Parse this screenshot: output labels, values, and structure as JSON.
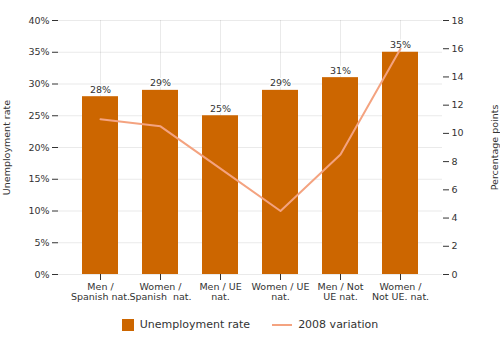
{
  "chart_data": {
    "type": "bar",
    "categories": [
      "Men /\nSpanish nat.",
      "Women /\nSpanish  nat.",
      "Men / UE\nnat.",
      "Women / UE\nnat.",
      "Men / Not\nUE nat.",
      "Women /\nNot UE. nat."
    ],
    "series": [
      {
        "name": "Unemployment rate",
        "type": "bar",
        "color": "#CC6600",
        "values": [
          28,
          29,
          25,
          29,
          31,
          35
        ],
        "value_labels": [
          "28%",
          "29%",
          "25%",
          "29%",
          "31%",
          "35%"
        ]
      },
      {
        "name": "2008 variation",
        "type": "line",
        "color": "#F4A380",
        "axis": "y2",
        "values": [
          11.0,
          10.5,
          7.5,
          4.5,
          8.5,
          16.0
        ]
      }
    ],
    "ylabel": "Unemployment rate",
    "y2label": "Percentage points",
    "ylim": [
      0,
      40
    ],
    "yticks": [
      {
        "value": 0,
        "label": "0%"
      },
      {
        "value": 5,
        "label": "5%"
      },
      {
        "value": 10,
        "label": "10%"
      },
      {
        "value": 15,
        "label": "15%"
      },
      {
        "value": 20,
        "label": "20%"
      },
      {
        "value": 25,
        "label": "25%"
      },
      {
        "value": 30,
        "label": "30%"
      },
      {
        "value": 35,
        "label": "35%"
      },
      {
        "value": 40,
        "label": "40%"
      }
    ],
    "y2lim": [
      0,
      18
    ],
    "y2ticks": [
      0,
      2,
      4,
      6,
      8,
      10,
      12,
      14,
      16,
      18
    ],
    "grid": true,
    "legend": "bottom",
    "data_labels": true
  }
}
